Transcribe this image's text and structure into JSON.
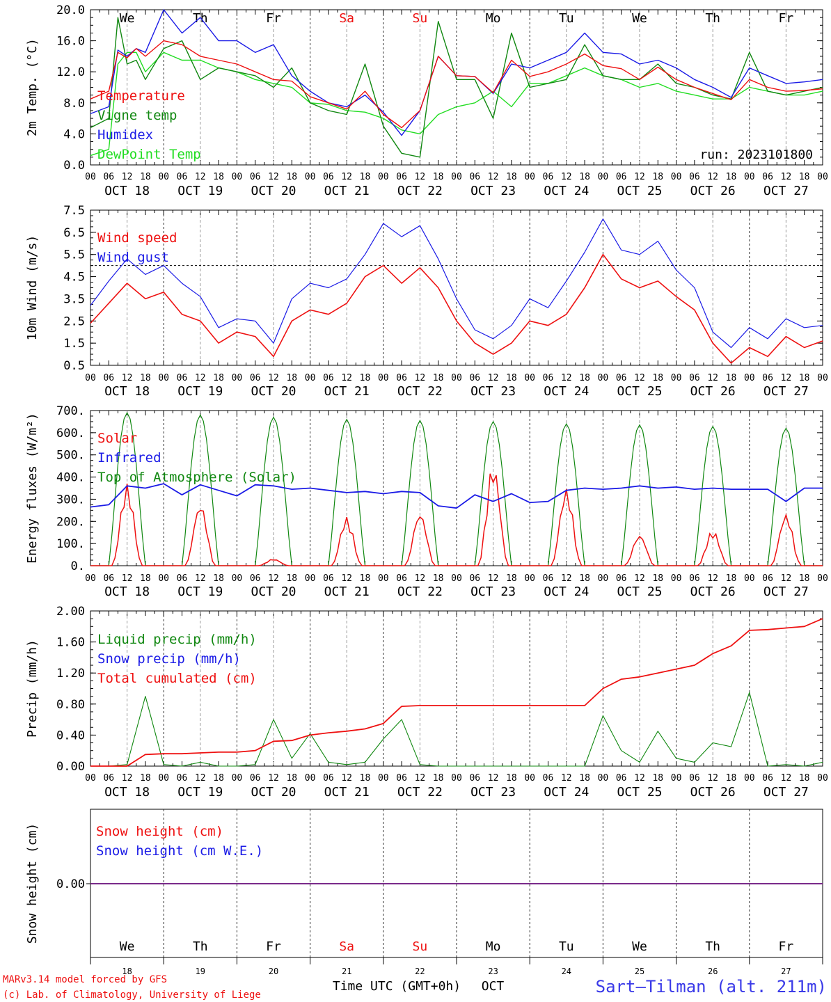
{
  "footer": {
    "credit_line1": "MARv3.14 model forced by GFS",
    "credit_line2": "(c) Lab. of Climatology, University of Liege",
    "xlabel": "Time UTC (GMT+0h)",
    "month": "OCT",
    "station": "Sart–Tilman (alt. 211m)"
  },
  "colors": {
    "red": "#ee1111",
    "blue": "#1b1be6",
    "green": "#118811",
    "lightgreen": "#22dd22",
    "weekend": "#ee1111",
    "purple": "#7a2a8a"
  },
  "chart_data": [
    {
      "type": "line",
      "ylabel": "2m Temp. (°C)",
      "ylim": [
        0,
        20
      ],
      "yticks": [
        "0.0",
        "4.0",
        "8.0",
        "12.0",
        "16.0",
        "20.0"
      ],
      "days": [
        "We",
        "Th",
        "Fr",
        "Sa",
        "Su",
        "Mo",
        "Tu",
        "We",
        "Th",
        "Fr"
      ],
      "weekend_days": [
        3,
        4
      ],
      "x_hours": [
        0,
        6,
        9,
        12,
        15,
        18,
        24,
        30,
        36,
        42,
        48,
        54,
        60,
        66,
        72,
        78,
        84,
        90,
        96,
        102,
        108,
        114,
        120,
        126,
        132,
        138,
        144,
        150,
        156,
        162,
        168,
        174,
        180,
        186,
        192,
        198,
        204,
        210,
        216,
        222,
        228,
        234,
        240
      ],
      "annotation": "run: 2023101800",
      "series": [
        {
          "name": "Temperature",
          "color": "#ee1111",
          "values": [
            8.5,
            9.5,
            14.5,
            13.8,
            15.0,
            14.0,
            16.0,
            15.5,
            14.0,
            13.5,
            13.0,
            12.0,
            11.0,
            10.8,
            8.8,
            8.0,
            7.2,
            9.5,
            6.5,
            4.8,
            7.0,
            14.0,
            11.5,
            11.4,
            9.3,
            13.5,
            11.4,
            12.0,
            13.0,
            14.3,
            12.8,
            12.4,
            11.0,
            12.6,
            11.0,
            10.0,
            9.2,
            8.4,
            11.0,
            10.0,
            9.5,
            9.6,
            9.8
          ]
        },
        {
          "name": "Vigne temp",
          "color": "#118811",
          "values": [
            4.8,
            6.0,
            19.0,
            13.0,
            13.5,
            11.0,
            15.0,
            16.0,
            11.0,
            12.5,
            12.0,
            11.5,
            10.0,
            12.5,
            8.0,
            7.0,
            6.5,
            13.0,
            5.0,
            1.5,
            1.0,
            18.5,
            11.0,
            11.0,
            6.0,
            17.0,
            10.0,
            10.5,
            11.0,
            15.5,
            11.5,
            11.0,
            11.0,
            13.0,
            10.5,
            10.0,
            9.0,
            8.5,
            14.5,
            9.5,
            9.0,
            9.5,
            10.0
          ]
        },
        {
          "name": "Humidex",
          "color": "#1b1be6",
          "values": [
            6.6,
            7.5,
            14.8,
            14.0,
            15.0,
            14.5,
            20.0,
            17.0,
            19.0,
            16.0,
            16.0,
            14.5,
            15.5,
            11.5,
            9.5,
            8.0,
            7.5,
            9.0,
            6.8,
            3.8,
            7.0,
            14.0,
            11.5,
            11.4,
            9.2,
            13.0,
            12.5,
            13.5,
            14.5,
            17.0,
            14.5,
            14.3,
            13.0,
            13.5,
            12.5,
            11.0,
            10.0,
            8.7,
            12.5,
            11.5,
            10.5,
            10.7,
            11.0
          ]
        },
        {
          "name": "DewPoint Temp",
          "color": "#22dd22",
          "values": [
            1.2,
            2.0,
            13.0,
            14.5,
            14.5,
            12.0,
            14.5,
            13.5,
            13.5,
            12.5,
            12.0,
            11.0,
            10.5,
            10.0,
            8.0,
            7.8,
            7.0,
            6.8,
            6.0,
            4.5,
            4.0,
            6.5,
            7.5,
            8.0,
            9.5,
            7.5,
            10.5,
            10.5,
            11.5,
            12.5,
            11.5,
            11.0,
            10.0,
            10.5,
            9.5,
            9.0,
            8.5,
            8.5,
            10.0,
            9.5,
            9.0,
            9.0,
            9.5
          ]
        }
      ]
    },
    {
      "type": "line",
      "ylabel": "10m Wind (m/s)",
      "ylim": [
        0.5,
        7.5
      ],
      "yticks": [
        "0.5",
        "1.5",
        "2.5",
        "3.5",
        "4.5",
        "5.5",
        "6.5",
        "7.5"
      ],
      "reference_line": 5.0,
      "x_hours": [
        0,
        6,
        12,
        18,
        24,
        30,
        36,
        42,
        48,
        54,
        60,
        66,
        72,
        78,
        84,
        90,
        96,
        102,
        108,
        114,
        120,
        126,
        132,
        138,
        144,
        150,
        156,
        162,
        168,
        174,
        180,
        186,
        192,
        198,
        204,
        210,
        216,
        222,
        228,
        234,
        240
      ],
      "series": [
        {
          "name": "Wind speed",
          "color": "#ee1111",
          "values": [
            2.4,
            3.3,
            4.2,
            3.5,
            3.8,
            2.8,
            2.5,
            1.5,
            2.0,
            1.8,
            0.9,
            2.5,
            3.0,
            2.8,
            3.3,
            4.5,
            5.0,
            4.2,
            4.9,
            4.0,
            2.5,
            1.5,
            1.0,
            1.5,
            2.5,
            2.3,
            2.8,
            4.0,
            5.5,
            4.4,
            4.0,
            4.3,
            3.6,
            3.0,
            1.5,
            0.6,
            1.3,
            0.9,
            1.8,
            1.3,
            1.6
          ]
        },
        {
          "name": "Wind gust",
          "color": "#1b1be6",
          "values": [
            3.2,
            4.3,
            5.3,
            4.6,
            5.0,
            4.2,
            3.6,
            2.2,
            2.6,
            2.5,
            1.5,
            3.5,
            4.2,
            4.0,
            4.4,
            5.5,
            6.9,
            6.3,
            6.8,
            5.3,
            3.5,
            2.1,
            1.7,
            2.3,
            3.5,
            3.1,
            4.3,
            5.6,
            7.1,
            5.7,
            5.5,
            6.1,
            4.8,
            4.0,
            2.0,
            1.3,
            2.2,
            1.7,
            2.6,
            2.2,
            2.3
          ]
        }
      ]
    },
    {
      "type": "line",
      "ylabel": "Energy fluxes (W/m²)",
      "ylim": [
        0,
        700
      ],
      "yticks": [
        "0.",
        "100.",
        "200.",
        "300.",
        "400.",
        "500.",
        "600.",
        "700."
      ],
      "x_hours": [
        0,
        6,
        12,
        18,
        24,
        30,
        36,
        42,
        48,
        54,
        60,
        66,
        72,
        78,
        84,
        90,
        96,
        102,
        108,
        114,
        120,
        126,
        132,
        138,
        144,
        150,
        156,
        162,
        168,
        174,
        180,
        186,
        192,
        198,
        204,
        210,
        216,
        222,
        228,
        234,
        240
      ],
      "solar_peaks": [
        370,
        280,
        30,
        220,
        240,
        460,
        350,
        140,
        160,
        235
      ],
      "toa_peaks": [
        690,
        680,
        670,
        660,
        655,
        650,
        640,
        635,
        628,
        620
      ],
      "series": [
        {
          "name": "Solar",
          "color": "#ee1111",
          "values": []
        },
        {
          "name": "Infrared",
          "color": "#1b1be6",
          "values": [
            265,
            275,
            360,
            350,
            370,
            320,
            365,
            340,
            315,
            365,
            360,
            345,
            350,
            340,
            330,
            335,
            325,
            335,
            330,
            270,
            260,
            320,
            290,
            325,
            285,
            290,
            340,
            350,
            345,
            350,
            360,
            350,
            355,
            345,
            350,
            345,
            345,
            345,
            290,
            350,
            350
          ]
        },
        {
          "name": "Top of Atmosphere (Solar)",
          "color": "#118811",
          "values": []
        }
      ]
    },
    {
      "type": "line",
      "ylabel": "Precip (mm/h)",
      "ylim": [
        0,
        2
      ],
      "yticks": [
        "0.00",
        "0.40",
        "0.80",
        "1.20",
        "1.60",
        "2.00"
      ],
      "x_hours": [
        0,
        6,
        12,
        18,
        24,
        30,
        36,
        42,
        48,
        54,
        60,
        66,
        72,
        78,
        84,
        90,
        96,
        102,
        108,
        114,
        120,
        126,
        132,
        138,
        144,
        150,
        156,
        162,
        168,
        174,
        180,
        186,
        192,
        198,
        204,
        210,
        216,
        222,
        228,
        234,
        240
      ],
      "series": [
        {
          "name": "Liquid precip (mm/h)",
          "color": "#118811",
          "values": [
            0.0,
            0.0,
            0.02,
            0.9,
            0.02,
            0.0,
            0.05,
            0.0,
            0.0,
            0.02,
            0.6,
            0.1,
            0.42,
            0.05,
            0.02,
            0.05,
            0.35,
            0.6,
            0.02,
            0.0,
            0.0,
            0.0,
            0.0,
            0.0,
            0.0,
            0.0,
            0.0,
            0.0,
            0.65,
            0.2,
            0.05,
            0.45,
            0.1,
            0.05,
            0.3,
            0.25,
            0.95,
            0.0,
            0.02,
            0.0,
            0.05
          ]
        },
        {
          "name": "Snow precip (mm/h)",
          "color": "#1b1be6",
          "values": []
        },
        {
          "name": "Total cumulated (cm)",
          "color": "#ee1111",
          "values": [
            0.0,
            0.0,
            0.0,
            0.15,
            0.16,
            0.16,
            0.17,
            0.18,
            0.18,
            0.2,
            0.32,
            0.33,
            0.4,
            0.43,
            0.45,
            0.48,
            0.55,
            0.77,
            0.78,
            0.78,
            0.78,
            0.78,
            0.78,
            0.78,
            0.78,
            0.78,
            0.78,
            0.78,
            1.0,
            1.12,
            1.15,
            1.2,
            1.25,
            1.3,
            1.45,
            1.55,
            1.75,
            1.76,
            1.78,
            1.8,
            1.9
          ]
        }
      ]
    },
    {
      "type": "line",
      "ylabel": "Snow height (cm)",
      "ytick": "0.00",
      "series": [
        {
          "name": "Snow height (cm)",
          "color": "#ee1111",
          "values": [
            0,
            0
          ]
        },
        {
          "name": "Snow height (cm W.E.)",
          "color": "#1b1be6",
          "values": [
            0,
            0
          ]
        }
      ]
    }
  ],
  "axis": {
    "hour_labels": [
      "00",
      "06",
      "12",
      "18"
    ],
    "day_labels": [
      "OCT 18",
      "OCT 19",
      "OCT 20",
      "OCT 21",
      "OCT 22",
      "OCT 23",
      "OCT 24",
      "OCT 25",
      "OCT 26",
      "OCT 27"
    ],
    "bottom_days": [
      "We",
      "Th",
      "Fr",
      "Sa",
      "Su",
      "Mo",
      "Tu",
      "We",
      "Th",
      "Fr"
    ],
    "bottom_dates": [
      "18",
      "19",
      "20",
      "21",
      "22",
      "23",
      "24",
      "25",
      "26",
      "27"
    ]
  }
}
